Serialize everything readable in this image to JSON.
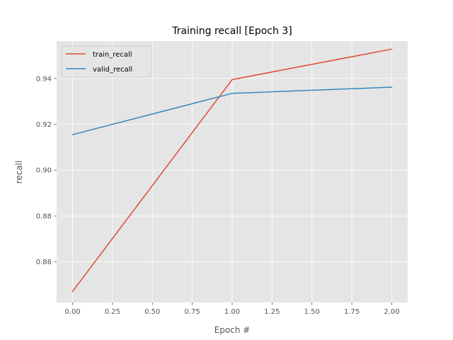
{
  "chart_data": {
    "type": "line",
    "title": "Training recall [Epoch 3]",
    "xlabel": "Epoch #",
    "ylabel": "recall",
    "x": [
      0,
      1,
      2
    ],
    "xlim": [
      -0.1,
      2.1
    ],
    "ylim": [
      0.8423,
      0.9563
    ],
    "xticks": [
      0.0,
      0.25,
      0.5,
      0.75,
      1.0,
      1.25,
      1.5,
      1.75,
      2.0
    ],
    "xtick_labels": [
      "0.00",
      "0.25",
      "0.50",
      "0.75",
      "1.00",
      "1.25",
      "1.50",
      "1.75",
      "2.00"
    ],
    "yticks": [
      0.86,
      0.88,
      0.9,
      0.92,
      0.94
    ],
    "ytick_labels": [
      "0.86",
      "0.88",
      "0.90",
      "0.92",
      "0.94"
    ],
    "grid": true,
    "legend_position": "top-left",
    "series": [
      {
        "name": "train_recall",
        "values": [
          0.8471,
          0.9395,
          0.9528
        ],
        "color": "#e24a33"
      },
      {
        "name": "valid_recall",
        "values": [
          0.9155,
          0.9335,
          0.9362
        ],
        "color": "#348abd"
      }
    ],
    "colors": {
      "plot_background": "#e5e5e5",
      "grid": "#ffffff"
    }
  }
}
